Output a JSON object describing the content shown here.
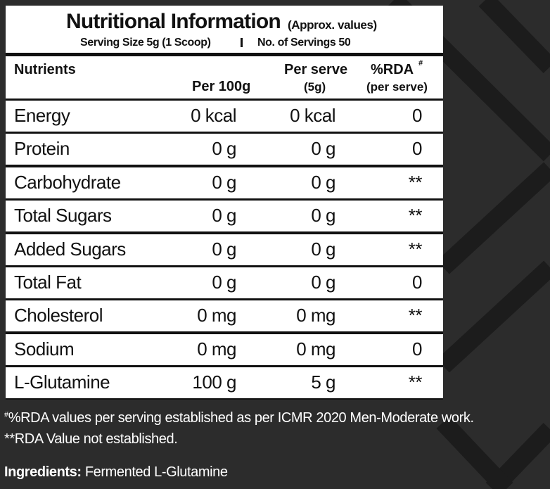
{
  "header": {
    "title": "Nutritional Information",
    "subtitle": "(Approx. values)",
    "serving_size": "Serving Size 5g (1 Scoop)",
    "servings": "No. of Servings 50"
  },
  "table": {
    "columns": {
      "nutrients": "Nutrients",
      "per_100g": "Per 100g",
      "per_serve": "Per serve",
      "per_serve_unit": "(5g)",
      "rda": "%RDA",
      "rda_mark": "#",
      "rda_unit": "(per serve)"
    },
    "rows": [
      [
        "Energy",
        "0 kcal",
        "0 kcal",
        "0"
      ],
      [
        "Protein",
        "0 g",
        "0 g",
        "0"
      ],
      [
        "Carbohydrate",
        "0 g",
        "0 g",
        "**"
      ],
      [
        "Total Sugars",
        "0 g",
        "0 g",
        "**"
      ],
      [
        " Added Sugars",
        "0 g",
        "0 g",
        "**"
      ],
      [
        "Total Fat",
        "0 g",
        "0 g",
        "0"
      ],
      [
        "Cholesterol",
        "0 mg",
        "0 mg",
        "**"
      ],
      [
        "Sodium",
        "0 mg",
        "0 mg",
        "0"
      ],
      [
        "L-Glutamine",
        "100 g",
        "5 g",
        "**"
      ]
    ]
  },
  "footnotes": {
    "mark": "#",
    "line1": "%RDA values per serving established as per ICMR 2020 Men-Moderate work.",
    "line2": "**RDA Value not established."
  },
  "ingredients": {
    "label": "Ingredients:",
    "text": "Fermented L-Glutamine"
  }
}
